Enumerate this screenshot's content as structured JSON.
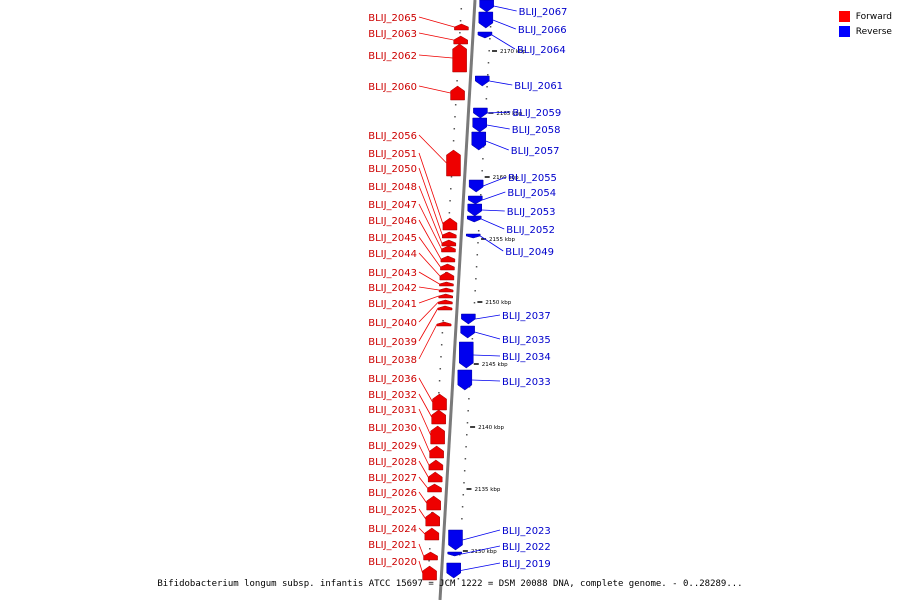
{
  "caption": "Bifidobacterium longum subsp. infantis ATCC 15697 = JCM 1222 = DSM 20088 DNA, complete genome. - 0..28289...",
  "legend": [
    {
      "label": "Forward",
      "color": "#ff0000"
    },
    {
      "label": "Reverse",
      "color": "#0000ff"
    }
  ],
  "colors": {
    "forward": "#ee0000",
    "reverse": "#0000ee",
    "forward_label": "#cc0000",
    "reverse_label": "#0000cc",
    "backbone": "#888888"
  },
  "ticks": [
    "2170 kbp",
    "2165 kbp",
    "2160 kbp",
    "2155 kbp",
    "2150 kbp",
    "2145 kbp",
    "2140 kbp",
    "2135 kbp",
    "2130 kbp"
  ],
  "forward_genes": [
    "BLIJ_2065",
    "BLIJ_2063",
    "BLIJ_2062",
    "BLIJ_2060",
    "BLIJ_2056",
    "BLIJ_2051",
    "BLIJ_2050",
    "BLIJ_2048",
    "BLIJ_2047",
    "BLIJ_2046",
    "BLIJ_2045",
    "BLIJ_2044",
    "BLIJ_2043",
    "BLIJ_2042",
    "BLIJ_2041",
    "BLIJ_2040",
    "BLIJ_2039",
    "BLIJ_2038",
    "BLIJ_2036",
    "BLIJ_2032",
    "BLIJ_2031",
    "BLIJ_2030",
    "BLIJ_2029",
    "BLIJ_2028",
    "BLIJ_2027",
    "BLIJ_2026",
    "BLIJ_2025",
    "BLIJ_2024",
    "BLIJ_2021",
    "BLIJ_2020"
  ],
  "reverse_genes": [
    "BLIJ_2067",
    "BLIJ_2066",
    "BLIJ_2064",
    "BLIJ_2061",
    "BLIJ_2059",
    "BLIJ_2058",
    "BLIJ_2057",
    "BLIJ_2055",
    "BLIJ_2054",
    "BLIJ_2053",
    "BLIJ_2052",
    "BLIJ_2049",
    "BLIJ_2037",
    "BLIJ_2035",
    "BLIJ_2034",
    "BLIJ_2033",
    "BLIJ_2023",
    "BLIJ_2022",
    "BLIJ_2019"
  ]
}
